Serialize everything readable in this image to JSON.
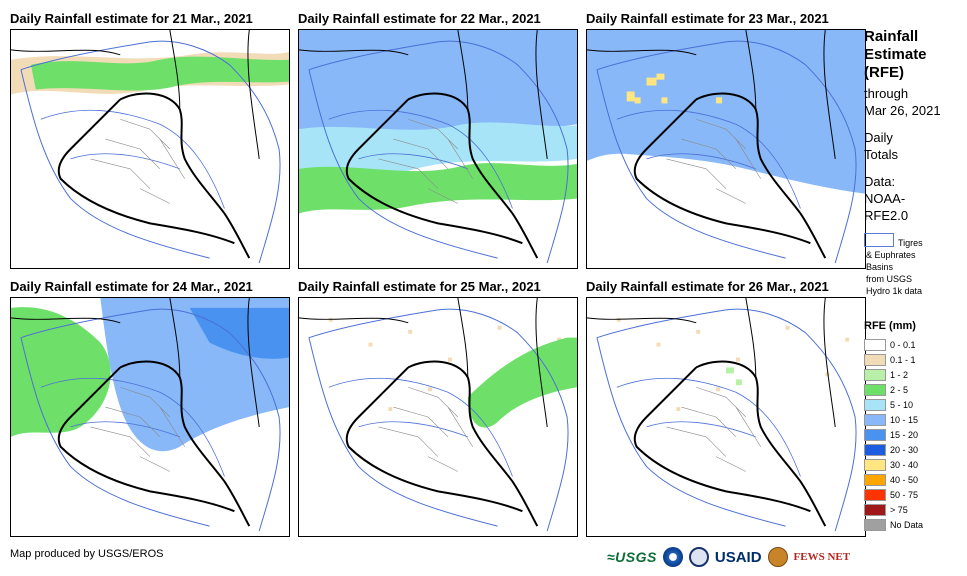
{
  "panels": [
    {
      "title": "Daily Rainfall estimate for 21 Mar., 2021",
      "fields": [
        {
          "class": "0.1-1",
          "shape": "band-north-thin"
        },
        {
          "class": "2-5",
          "shape": "band-north"
        }
      ]
    },
    {
      "title": "Daily Rainfall estimate for 22 Mar., 2021",
      "fields": [
        {
          "class": "10-15",
          "shape": "north-wide"
        },
        {
          "class": "5-10",
          "shape": "mid-band"
        },
        {
          "class": "2-5",
          "shape": "south-band"
        }
      ]
    },
    {
      "title": "Daily Rainfall estimate for 23 Mar., 2021",
      "fields": [
        {
          "class": "10-15",
          "shape": "full-north"
        },
        {
          "class": "30-40",
          "shape": "spots-north"
        }
      ]
    },
    {
      "title": "Daily Rainfall estimate for 24 Mar., 2021",
      "fields": [
        {
          "class": "2-5",
          "shape": "west-north"
        },
        {
          "class": "10-15",
          "shape": "east-north"
        },
        {
          "class": "15-20",
          "shape": "ne-core"
        }
      ]
    },
    {
      "title": "Daily Rainfall estimate for 25 Mar., 2021",
      "fields": [
        {
          "class": "0.1-1",
          "shape": "scatter"
        },
        {
          "class": "2-5",
          "shape": "east-patch"
        }
      ]
    },
    {
      "title": "Daily Rainfall estimate for 26 Mar., 2021",
      "fields": [
        {
          "class": "0.1-1",
          "shape": "scatter"
        },
        {
          "class": "1-2",
          "shape": "small-center"
        }
      ]
    }
  ],
  "side": {
    "title_1": "Rainfall",
    "title_2": "Estimate",
    "title_3": "(RFE)",
    "through": "through",
    "date": "Mar 26, 2021",
    "daily": "Daily",
    "totals": "Totals",
    "data_label": "Data:",
    "data_source_1": "NOAA-",
    "data_source_2": "RFE2.0"
  },
  "basins": {
    "line1": "Tigres",
    "line2": "& Euphrates",
    "line3": "Basins",
    "line4": "from USGS",
    "line5": "Hydro 1k data"
  },
  "legend": {
    "title": "RFE (mm)",
    "items": [
      {
        "label": "0 - 0.1",
        "color": "#ffffff"
      },
      {
        "label": "0.1 - 1",
        "color": "#f2dcb8"
      },
      {
        "label": "1 - 2",
        "color": "#b8f0a8"
      },
      {
        "label": "2 - 5",
        "color": "#6ee06a"
      },
      {
        "label": "5 - 10",
        "color": "#a8e4f8"
      },
      {
        "label": "10 - 15",
        "color": "#88b8f8"
      },
      {
        "label": "15 - 20",
        "color": "#4a92f0"
      },
      {
        "label": "20 - 30",
        "color": "#1c5ce0"
      },
      {
        "label": "30 - 40",
        "color": "#ffe680"
      },
      {
        "label": "40 - 50",
        "color": "#ffa500"
      },
      {
        "label": "50 - 75",
        "color": "#ff3300"
      },
      {
        "label": "> 75",
        "color": "#a01818"
      },
      {
        "label": "No Data",
        "color": "#a0a0a0"
      }
    ]
  },
  "footer": "Map produced by USGS/EROS",
  "logos": {
    "usgs": "≈USGS",
    "usaid": "USAID",
    "fews": "FEWS NET"
  }
}
